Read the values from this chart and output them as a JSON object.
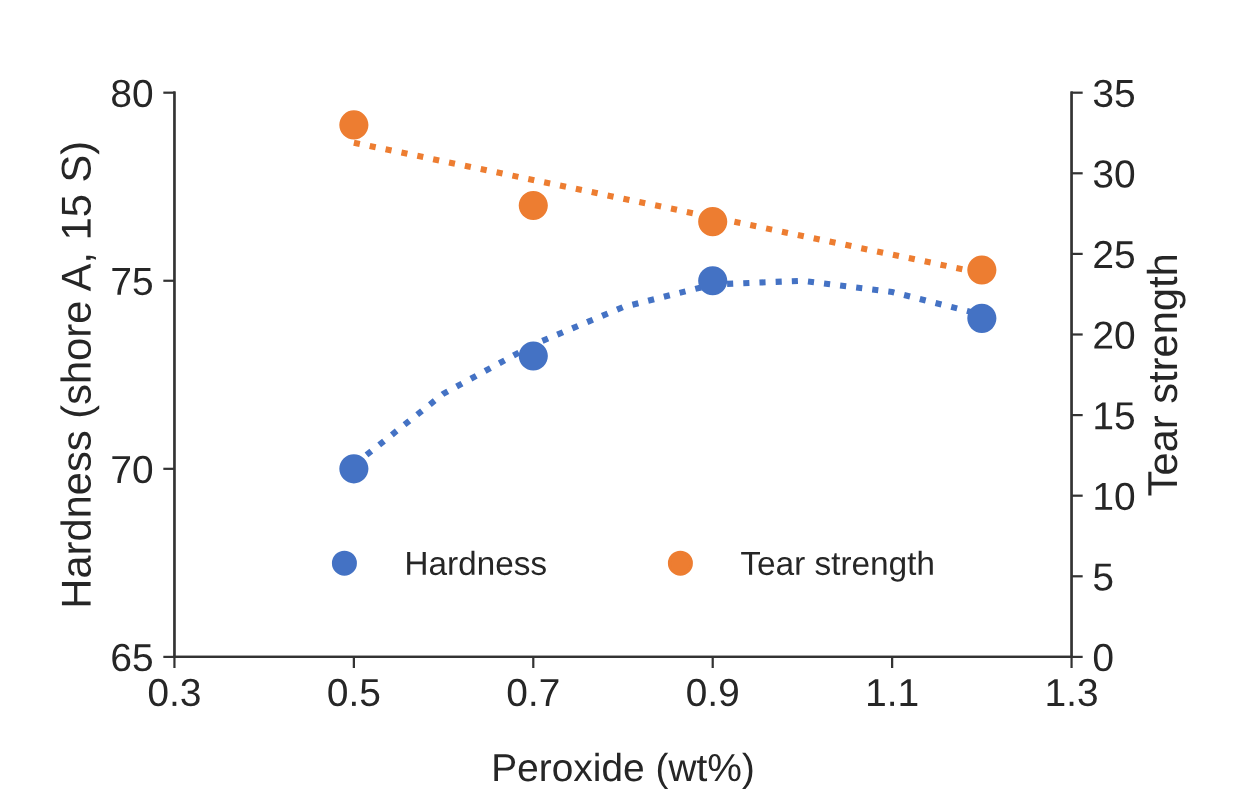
{
  "chart_data": {
    "type": "scatter",
    "xlabel": "Peroxide (wt%)",
    "ylabel": "Hardness (shore A, 15 S)",
    "y2label": "Tear strength",
    "xlim": [
      0.3,
      1.3
    ],
    "xticks": [
      0.3,
      0.5,
      0.7,
      0.9,
      1.1,
      1.3
    ],
    "ylim": [
      65,
      80
    ],
    "yticks": [
      65,
      70,
      75,
      80
    ],
    "y2lim": [
      0,
      35
    ],
    "y2ticks": [
      0,
      5,
      10,
      15,
      20,
      25,
      30,
      35
    ],
    "grid": false,
    "legend": "bottom",
    "marker": "circle",
    "series": [
      {
        "name": "Hardness",
        "color": "#4472c4",
        "x": [
          0.5,
          0.7,
          0.9,
          1.2
        ],
        "values": [
          70,
          73,
          75,
          74
        ]
      },
      {
        "name": "Tear strength",
        "axis": "y2",
        "color": "#ed7d31",
        "x": [
          0.5,
          0.7,
          0.9,
          1.2
        ],
        "values": [
          33,
          28,
          27,
          24
        ]
      },
      {
        "type": "line",
        "marker": "none",
        "line_style": "dotted",
        "color": "#4472c4",
        "x": [
          0.5,
          0.6,
          0.7,
          0.8,
          0.9,
          1.0,
          1.1,
          1.2
        ],
        "values": [
          70.1,
          72.0,
          73.3,
          74.3,
          74.9,
          75.0,
          74.7,
          74.1
        ]
      },
      {
        "type": "line",
        "marker": "none",
        "line_style": "dotted",
        "axis": "y2",
        "color": "#ed7d31",
        "x": [
          0.5,
          1.2
        ],
        "values": [
          31.9,
          23.8
        ]
      }
    ]
  }
}
